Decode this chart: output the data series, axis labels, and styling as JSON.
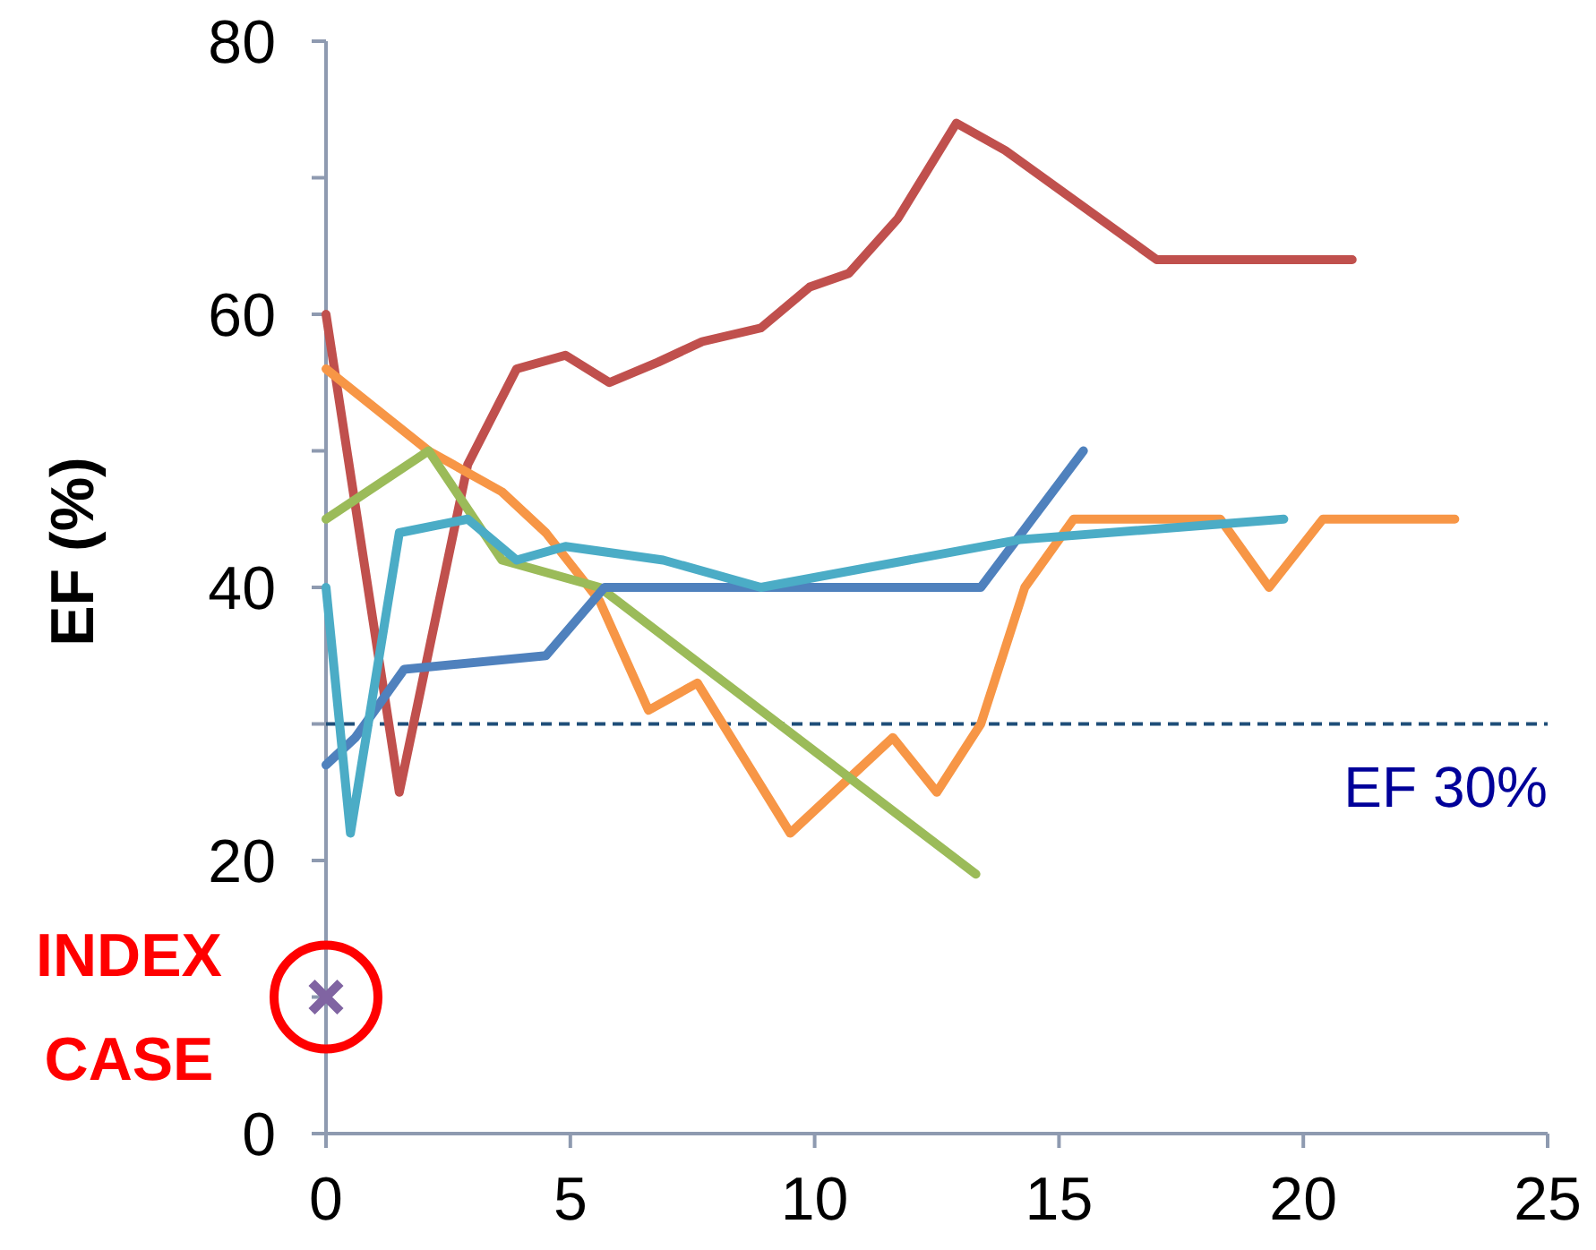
{
  "chart_data": {
    "type": "line",
    "ylabel": "EF (%)",
    "xlim": [
      0,
      25
    ],
    "xticks": [
      0,
      5,
      10,
      15,
      20,
      25
    ],
    "ylim": [
      0,
      80
    ],
    "yticks": [
      0,
      {
        "value": 10,
        "label": null
      },
      20,
      {
        "value": 30,
        "label": null
      },
      40,
      {
        "value": 50,
        "label": null
      },
      60,
      {
        "value": 70,
        "label": null
      },
      80
    ],
    "grid": false,
    "marker": "none",
    "line_style": "solid",
    "series": [
      {
        "color": "#c0504d",
        "x": [
          0,
          1.5,
          2.9,
          3.9,
          4.9,
          5.8,
          6.8,
          7.7,
          8.9,
          9.9,
          10.7,
          11.7,
          12.9,
          13.9,
          17,
          21
        ],
        "values": [
          60,
          25,
          49,
          56,
          57,
          55,
          56.5,
          58,
          59,
          62,
          63,
          67,
          74,
          72,
          64,
          64
        ]
      },
      {
        "color": "#f79646",
        "x": [
          0,
          2.1,
          3.6,
          4.5,
          5.6,
          6.6,
          7.6,
          9.5,
          11.6,
          12.5,
          13.4,
          14.3,
          15.3,
          18.3,
          19.3,
          20.4,
          23.1
        ],
        "values": [
          56,
          50,
          47,
          44,
          39,
          31,
          33,
          22,
          29,
          25,
          30,
          40,
          45,
          45,
          40,
          45,
          45
        ]
      },
      {
        "color": "#9bbb59",
        "x": [
          0,
          2.1,
          3.6,
          5.6,
          13.3
        ],
        "values": [
          45,
          50,
          42,
          40,
          19
        ]
      },
      {
        "color": "#4f81bd",
        "x": [
          0,
          0.6,
          1.6,
          4.5,
          5.7,
          13.4,
          15.5
        ],
        "values": [
          27,
          29,
          34,
          35,
          40,
          40,
          50
        ]
      },
      {
        "color": "#4bacc6",
        "x": [
          0,
          0.5,
          1.5,
          2.9,
          3.9,
          4.9,
          6.9,
          8.9,
          14.2,
          19.6
        ],
        "values": [
          40,
          22,
          44,
          45,
          42,
          43,
          42,
          40,
          43.5,
          45
        ]
      },
      {
        "type": "scatter",
        "color": "#8064a2",
        "marker": "cross",
        "x": [
          0
        ],
        "values": [
          10
        ]
      }
    ],
    "ref_lines": [
      {
        "axis": "y",
        "value": 30,
        "label": "EF 30%",
        "color": "#1f4e79",
        "line_style": "dashed"
      }
    ],
    "annotations": [
      {
        "text": "INDEX CASE",
        "x": 0,
        "y": 10
      }
    ]
  }
}
